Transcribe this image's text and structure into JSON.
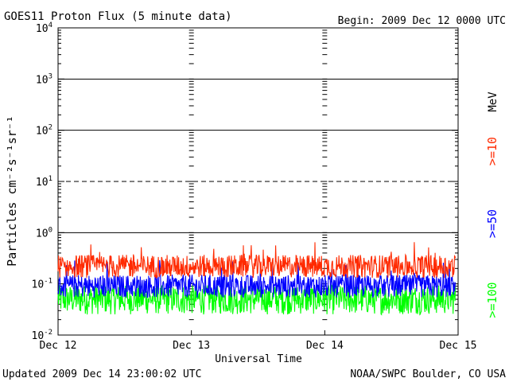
{
  "header": {
    "title": "GOES11 Proton Flux (5 minute data)",
    "begin": "Begin: 2009 Dec 12 0000 UTC"
  },
  "footer": {
    "updated": "Updated 2009 Dec 14 23:00:02 UTC",
    "credit": "NOAA/SWPC Boulder, CO USA"
  },
  "colors": {
    "ge10": "#ff2a00",
    "ge50": "#0000ff",
    "ge100": "#00ff00",
    "axis": "#000000",
    "background": "#ffffff"
  },
  "chart_data": {
    "type": "line",
    "title": "GOES11 Proton Flux (5 minute data)",
    "xlabel": "Universal Time",
    "ylabel": "Particles cm⁻²s⁻¹sr⁻¹",
    "y_scale": "log",
    "ylim": [
      0.01,
      10000
    ],
    "xlim": [
      "2009-12-12 00:00",
      "2009-12-15 00:00"
    ],
    "x_tick_labels": [
      "Dec 12",
      "Dec 13",
      "Dec 14",
      "Dec 15"
    ],
    "y_tick_labels": [
      {
        "base": "10",
        "exp": "4",
        "value": 10000
      },
      {
        "base": "10",
        "exp": "3",
        "value": 1000
      },
      {
        "base": "10",
        "exp": "2",
        "value": 100
      },
      {
        "base": "10",
        "exp": "1",
        "value": 10
      },
      {
        "base": "10",
        "exp": "0",
        "value": 1
      },
      {
        "base": "10",
        "exp": "-1",
        "value": 0.1
      },
      {
        "base": "10",
        "exp": "-2",
        "value": 0.01
      }
    ],
    "threshold_lines": [
      {
        "value": 1000,
        "style": "solid"
      },
      {
        "value": 100,
        "style": "solid"
      },
      {
        "value": 10,
        "style": "dashed"
      },
      {
        "value": 1,
        "style": "solid"
      }
    ],
    "legend_position": "right (vertical)",
    "legend_unit": "MeV",
    "series": [
      {
        "name": ">=10",
        "color": "#ff2a00",
        "typical_value": 0.22,
        "range": [
          0.12,
          0.7
        ]
      },
      {
        "name": ">=50",
        "color": "#0000ff",
        "typical_value": 0.09,
        "range": [
          0.05,
          0.3
        ]
      },
      {
        "name": ">=100",
        "color": "#00ff00",
        "typical_value": 0.05,
        "range": [
          0.025,
          0.12
        ]
      }
    ]
  }
}
